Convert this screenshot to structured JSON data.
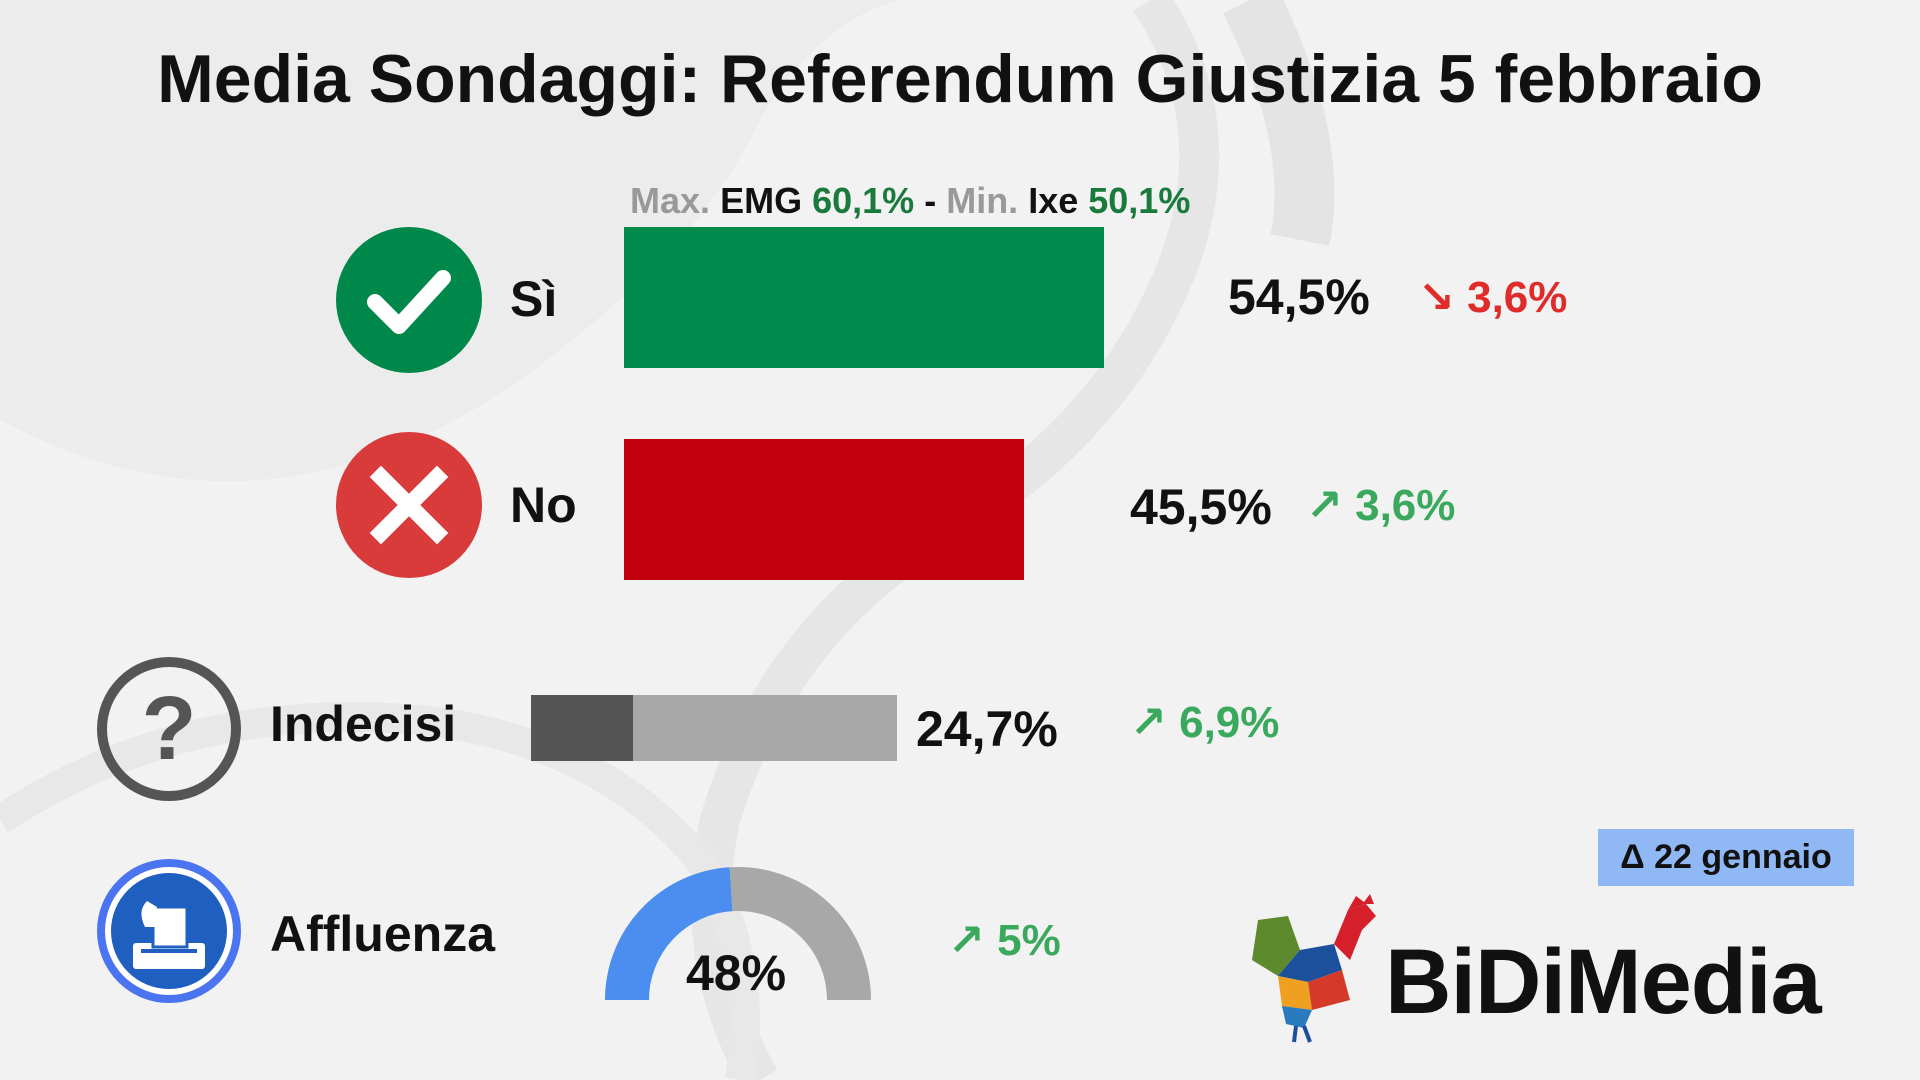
{
  "title": "Media Sondaggi: Referendum Giustizia 5 febbraio",
  "range_note": {
    "max_label": "Max.",
    "max_pollster": "EMG",
    "max_value": "60,1%",
    "separator": "-",
    "min_label": "Min.",
    "min_pollster": "Ixe",
    "min_value": "50,1%"
  },
  "rows": {
    "si": {
      "label": "Sì",
      "value_text": "54,5%",
      "value": 54.5,
      "trend": "down",
      "arrow": "↘",
      "delta": "3,6%",
      "color": "#008a4b"
    },
    "no": {
      "label": "No",
      "value_text": "45,5%",
      "value": 45.5,
      "trend": "up",
      "arrow": "↗",
      "delta": "3,6%",
      "color": "#c0000a"
    },
    "indecisi": {
      "label": "Indecisi",
      "value_text": "24,7%",
      "value": 24.7,
      "trend": "up",
      "arrow": "↗",
      "delta": "6,9%",
      "colors": [
        "#555555",
        "#a8a8a8"
      ]
    },
    "affluenza": {
      "label": "Affluenza",
      "value_text": "48%",
      "value": 48,
      "trend": "up",
      "arrow": "↗",
      "delta": "5%",
      "colors": [
        "#4b8ef0",
        "#a8a8a8"
      ]
    }
  },
  "badge": "Δ 22 gennaio",
  "brand": "BiDiMedia",
  "chart_data": {
    "type": "bar",
    "categories": [
      "Sì",
      "No",
      "Indecisi",
      "Affluenza"
    ],
    "values": [
      54.5,
      45.5,
      24.7,
      48
    ],
    "changes": [
      -3.6,
      3.6,
      6.9,
      5
    ],
    "change_reference": "Δ 22 gennaio",
    "max": {
      "pollster": "EMG",
      "value": 60.1
    },
    "min": {
      "pollster": "Ixe",
      "value": 50.1
    },
    "title": "Media Sondaggi: Referendum Giustizia 5 febbraio"
  }
}
